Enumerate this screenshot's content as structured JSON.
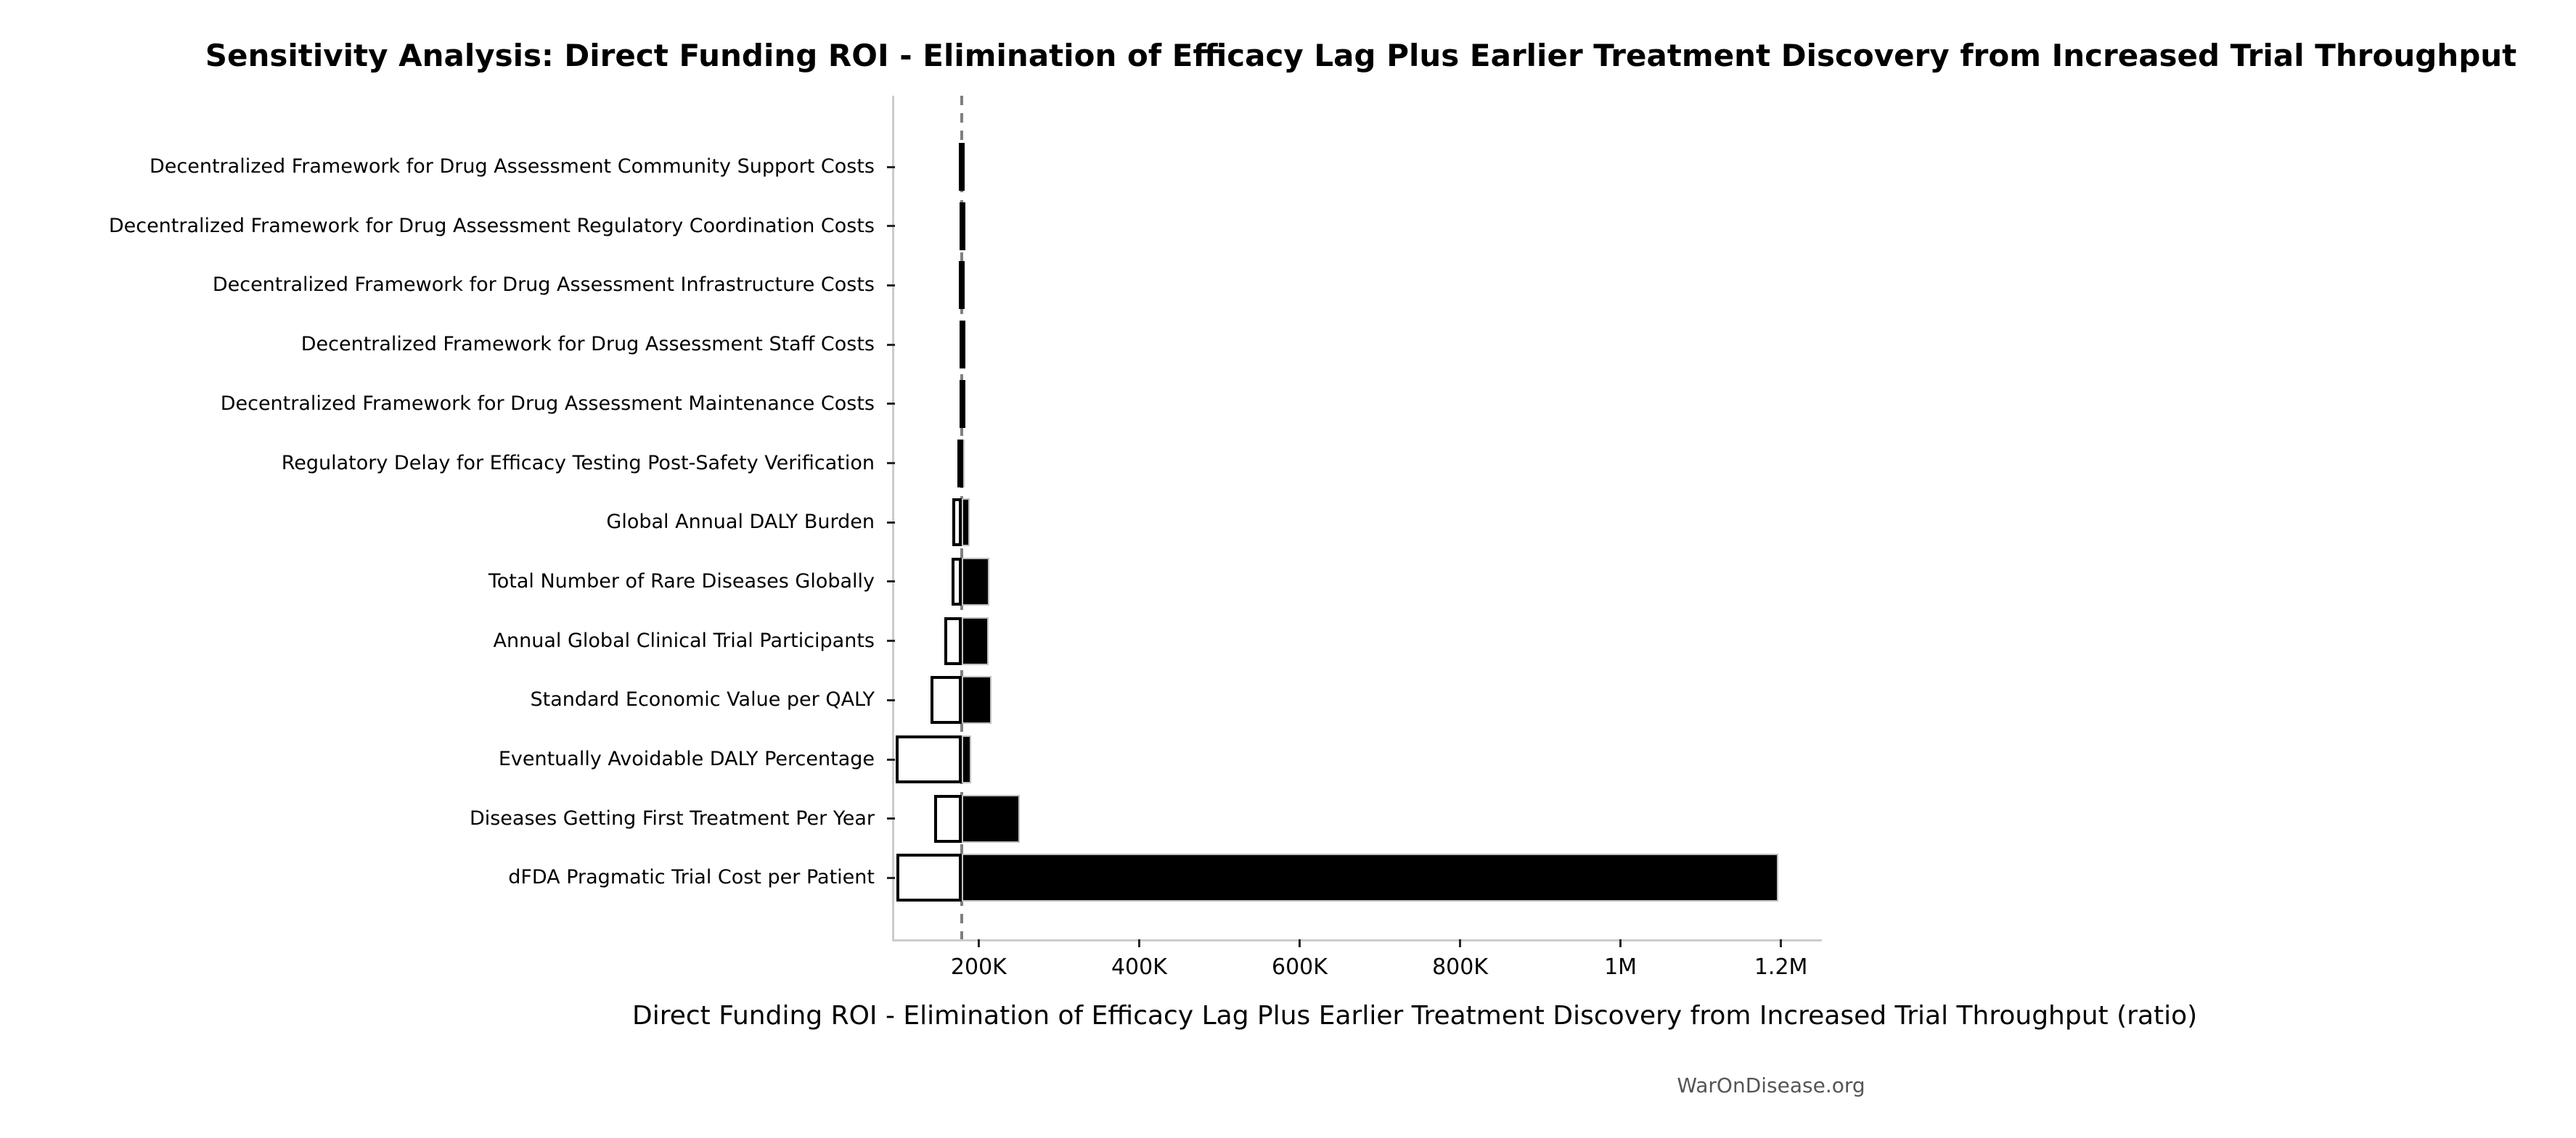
{
  "chart_data": {
    "type": "bar",
    "variant": "tornado-sensitivity",
    "title": "Sensitivity Analysis: Direct Funding ROI - Elimination of Efficacy Lag Plus Earlier Treatment Discovery from Increased Trial Throughput",
    "xlabel": "Direct Funding ROI - Elimination of Efficacy Lag Plus Earlier Treatment Discovery from Increased Trial Throughput (ratio)",
    "watermark": "WarOnDisease.org",
    "grid": false,
    "legend": "none",
    "xlim": [
      94700,
      1251000
    ],
    "baseline_value": 178500,
    "x_ticks": [
      {
        "label": "200K",
        "value": 200000
      },
      {
        "label": "400K",
        "value": 400000
      },
      {
        "label": "600K",
        "value": 600000
      },
      {
        "label": "800K",
        "value": 800000
      },
      {
        "label": "1M",
        "value": 1000000
      },
      {
        "label": "1.2M",
        "value": 1200000
      }
    ],
    "categories": [
      "Decentralized Framework for Drug Assessment Community Support Costs",
      "Decentralized Framework for Drug Assessment Regulatory Coordination Costs",
      "Decentralized Framework for Drug Assessment Infrastructure Costs",
      "Decentralized Framework for Drug Assessment Staff Costs",
      "Decentralized Framework for Drug Assessment Maintenance Costs",
      "Regulatory Delay for Efficacy Testing Post-Safety Verification",
      "Global Annual DALY Burden",
      "Total Number of Rare Diseases Globally",
      "Annual Global Clinical Trial Participants",
      "Standard Economic Value per QALY",
      "Eventually Avoidable DALY Percentage",
      "Diseases Getting First Treatment Per Year",
      "dFDA Pragmatic Trial Cost per Patient"
    ],
    "series": [
      {
        "name": "low",
        "fill": "#ffffff",
        "values": [
          175300,
          175900,
          175300,
          175900,
          176500,
          173500,
          166900,
          166000,
          156900,
          139700,
          96600,
          144300,
          97500
        ]
      },
      {
        "name": "high",
        "fill": "#000000",
        "values": [
          181900,
          181900,
          181400,
          181400,
          182500,
          182500,
          188900,
          213600,
          212100,
          216000,
          191000,
          251300,
          1197000
        ]
      }
    ]
  },
  "colors": {
    "bar_low_fill": "#ffffff",
    "bar_low_edge": "#000000",
    "bar_high_fill": "#000000",
    "bar_high_edge": "#c0c0c0",
    "baseline": "#7f7f7f",
    "spine": "#cccccc",
    "tick": "#262626",
    "watermark_text": "#555555"
  }
}
